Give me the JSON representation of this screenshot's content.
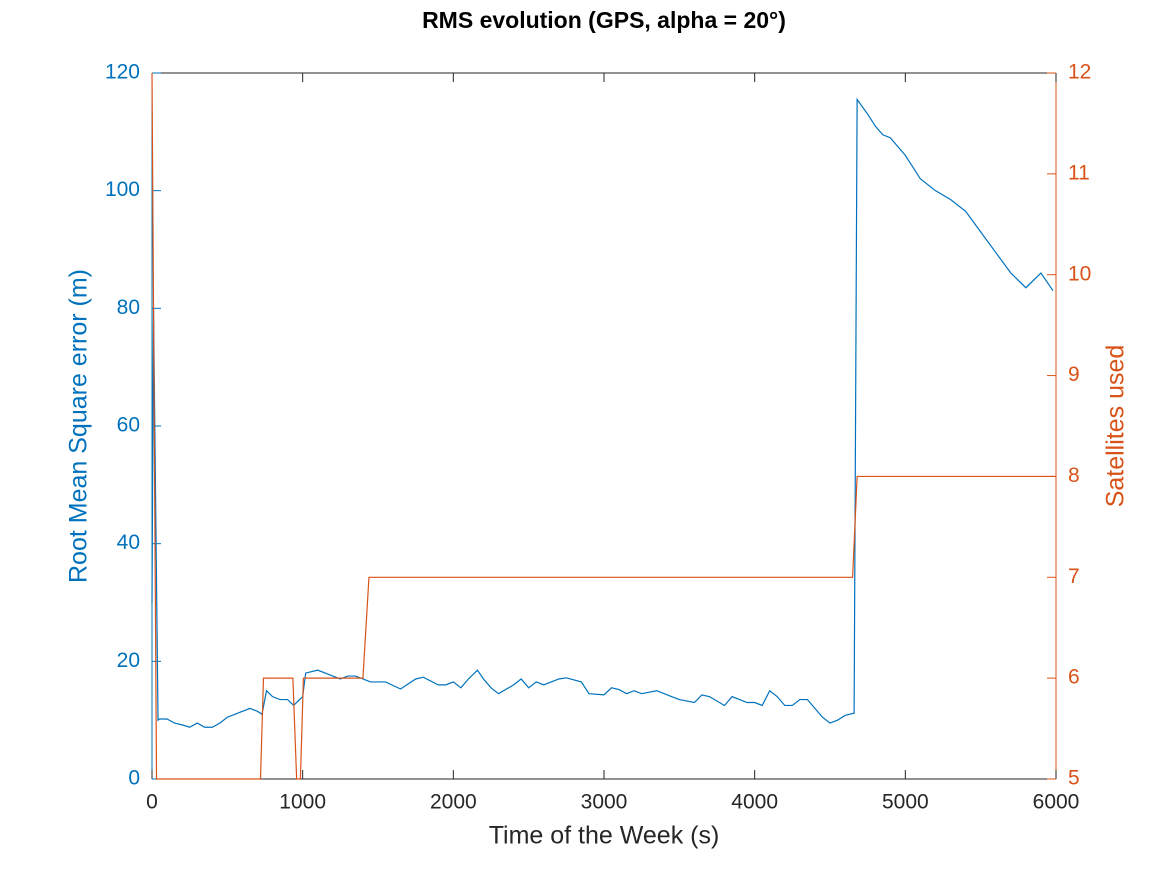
{
  "chart_data": {
    "type": "line",
    "title": "RMS evolution (GPS, alpha = 20°)",
    "xlabel": "Time of the Week (s)",
    "ylabel": "Root Mean Square error (m)",
    "y2label": "Satellites used",
    "xlim": [
      0,
      6000
    ],
    "xticks": [
      0,
      1000,
      2000,
      3000,
      4000,
      5000,
      6000
    ],
    "ylim": [
      0,
      120
    ],
    "yticks": [
      0,
      20,
      40,
      60,
      80,
      100,
      120
    ],
    "y2lim": [
      5,
      12
    ],
    "y2ticks": [
      5,
      6,
      7,
      8,
      9,
      10,
      11,
      12
    ],
    "ycolor": "#0072bd",
    "y2color": "#d95319",
    "series": [
      {
        "color": "#0072bd",
        "x": [
          0,
          10,
          40,
          50,
          100,
          150,
          200,
          250,
          300,
          350,
          400,
          450,
          500,
          550,
          600,
          650,
          700,
          730,
          760,
          800,
          850,
          900,
          940,
          980,
          1000,
          1020,
          1100,
          1150,
          1200,
          1250,
          1300,
          1350,
          1400,
          1450,
          1550,
          1650,
          1750,
          1800,
          1900,
          1950,
          2000,
          2050,
          2100,
          2160,
          2200,
          2250,
          2300,
          2400,
          2450,
          2500,
          2550,
          2600,
          2650,
          2700,
          2750,
          2850,
          2900,
          3000,
          3050,
          3100,
          3150,
          3200,
          3250,
          3350,
          3450,
          3500,
          3600,
          3650,
          3700,
          3800,
          3850,
          3900,
          3950,
          4000,
          4050,
          4100,
          4150,
          4200,
          4250,
          4300,
          4350,
          4400,
          4450,
          4500,
          4550,
          4600,
          4660,
          4680,
          4750,
          4800,
          4850,
          4900,
          5000,
          5100,
          5200,
          5300,
          5400,
          5500,
          5600,
          5700,
          5800,
          5900,
          5980
        ],
        "values": [
          30,
          80,
          10,
          10.2,
          10.2,
          9.5,
          9.2,
          8.8,
          9.5,
          8.8,
          8.8,
          9.5,
          10.5,
          11,
          11.5,
          12,
          11.5,
          11,
          15,
          14,
          13.5,
          13.5,
          12.5,
          13.5,
          14,
          18,
          18.5,
          18,
          17.5,
          17,
          17.5,
          17.5,
          17,
          16.5,
          16.5,
          15.3,
          17,
          17.3,
          16,
          16,
          16.5,
          15.5,
          17,
          18.5,
          17,
          15.5,
          14.5,
          16,
          17,
          15.5,
          16.5,
          16,
          16.5,
          17,
          17.2,
          16.5,
          14.5,
          14.3,
          15.5,
          15.2,
          14.5,
          15,
          14.5,
          15,
          14,
          13.5,
          13,
          14.3,
          14,
          12.5,
          14,
          13.5,
          13,
          13,
          12.5,
          15,
          14,
          12.5,
          12.5,
          13.5,
          13.5,
          12,
          10.5,
          9.5,
          10,
          10.8,
          11.2,
          115.5,
          113,
          111,
          109.5,
          109,
          106,
          102,
          100,
          98.5,
          96.5,
          93,
          89.5,
          86,
          83.5,
          86,
          83
        ]
      },
      {
        "color": "#d95319",
        "axis": "y2",
        "x": [
          0,
          30,
          720,
          740,
          935,
          960,
          985,
          1005,
          1400,
          1440,
          4650,
          4680,
          6000
        ],
        "values": [
          12,
          5,
          5,
          6,
          6,
          5,
          5,
          6,
          6,
          7,
          7,
          8,
          8
        ]
      }
    ]
  }
}
